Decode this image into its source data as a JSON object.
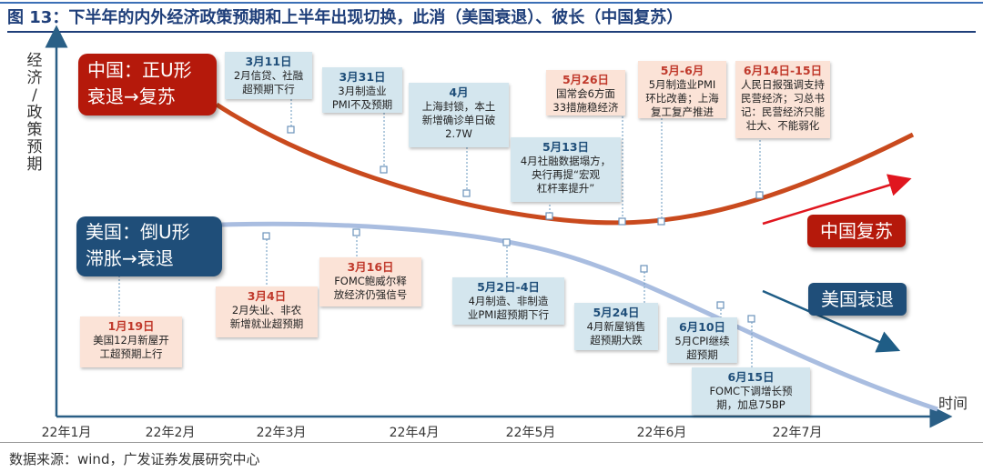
{
  "title": "图 13：下半年的内外经济政策预期和上半年出现切换，此消（美国衰退）、彼长（中国复苏）",
  "source": "数据来源：wind，广发证券发展研究中心",
  "colors": {
    "china": "#c0392b",
    "china_dark": "#b5190b",
    "us_line": "#a9bde0",
    "us_dark": "#1f4e79",
    "cn_box": "#fbe3d7",
    "us_box": "#d4e6ee"
  },
  "chart_data": {
    "type": "line",
    "title": "下半年的内外经济政策预期和上半年出现切换，此消（美国衰退）、彼长（中国复苏）",
    "ylabel": "经济/政策预期",
    "xlabel": "时间",
    "x_ticks": [
      "22年1月",
      "22年2月",
      "22年3月",
      "22年4月",
      "22年5月",
      "22年6月",
      "22年7月"
    ],
    "series": [
      {
        "name": "中国：正U形 衰退→复苏",
        "shape": "U",
        "label": "中国复苏"
      },
      {
        "name": "美国：倒U形 滞胀→衰退",
        "shape": "inverted-U",
        "label": "美国衰退"
      }
    ],
    "china_box": {
      "line1": "中国：正U形",
      "line2": "衰退→复苏"
    },
    "us_box": {
      "line1": "美国：倒U形",
      "line2": "滞胀→衰退"
    },
    "china_tag": "中国复苏",
    "us_tag": "美国衰退",
    "china_events": [
      {
        "date": "3月11日",
        "text": "2月信贷、社融\n超预期下行"
      },
      {
        "date": "3月31日",
        "text": "3月制造业\nPMI不及预期"
      },
      {
        "date": "4月",
        "text": "上海封锁，本土\n新增确诊单日破\n2.7W"
      },
      {
        "date": "5月13日",
        "text": "4月社融数据塌方，\n央行再提“宏观\n杠杆率提升”"
      },
      {
        "date": "5月26日",
        "text": "国常会6方面\n33措施稳经济"
      },
      {
        "date": "5月-6月",
        "text": "5月制造业PMI\n环比改善；上海\n复工复产推进"
      },
      {
        "date": "6月14日-15日",
        "text": "人民日报强调支持\n民营经济；习总书\n记：民营经济只能\n壮大、不能弱化"
      }
    ],
    "us_events": [
      {
        "date": "1月19日",
        "text": "美国12月新屋开\n工超预期上行"
      },
      {
        "date": "3月4日",
        "text": "2月失业、非农\n新增就业超预期"
      },
      {
        "date": "3月16日",
        "text": "FOMC鲍威尔释\n放经济仍强信号"
      },
      {
        "date": "5月2日-4日",
        "text": "4月制造、非制造\n业PMI超预期下行"
      },
      {
        "date": "5月24日",
        "text": "4月新屋销售\n超预期大跌"
      },
      {
        "date": "6月10日",
        "text": "5月CPI继续\n超预期"
      },
      {
        "date": "6月15日",
        "text": "FOMC下调增长预\n期，加息75BP"
      }
    ]
  }
}
